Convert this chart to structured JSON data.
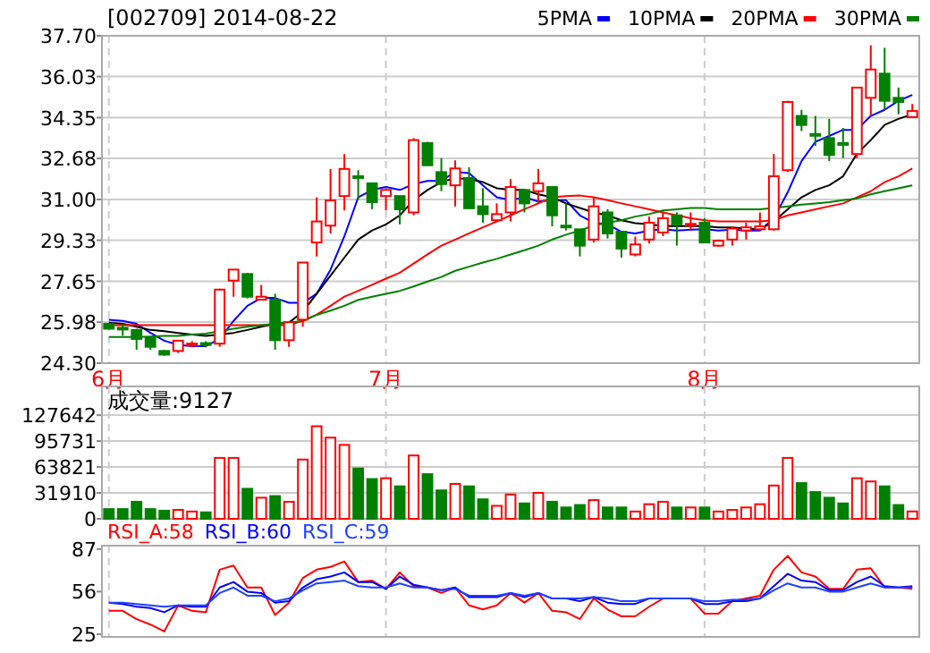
{
  "chart_data": [
    {
      "type": "candlestick",
      "title": "[002709] 2014-08-22",
      "categories": [
        "6月",
        null,
        null,
        null,
        null,
        null,
        null,
        null,
        null,
        null,
        null,
        null,
        null,
        null,
        null,
        null,
        null,
        null,
        null,
        null,
        "7月",
        null,
        null,
        null,
        null,
        null,
        null,
        null,
        null,
        null,
        null,
        null,
        null,
        null,
        null,
        null,
        null,
        null,
        null,
        null,
        null,
        null,
        null,
        "8月",
        null,
        null,
        null,
        null,
        null,
        null,
        null,
        null,
        null,
        null,
        null,
        null,
        null,
        null,
        null
      ],
      "ohlc": [
        [
          25.91,
          25.95,
          25.68,
          25.71
        ],
        [
          25.75,
          25.91,
          25.42,
          25.7
        ],
        [
          25.66,
          25.71,
          24.85,
          25.29
        ],
        [
          25.34,
          25.4,
          24.85,
          24.97
        ],
        [
          24.8,
          24.85,
          24.6,
          24.65
        ],
        [
          24.8,
          25.25,
          24.72,
          25.22
        ],
        [
          25.05,
          25.2,
          24.95,
          25.1
        ],
        [
          25.12,
          25.2,
          24.95,
          25.05
        ],
        [
          25.1,
          27.35,
          24.97,
          27.31
        ],
        [
          27.68,
          28.13,
          27.02,
          28.13
        ],
        [
          27.95,
          28.0,
          26.95,
          27.02
        ],
        [
          26.9,
          27.5,
          26.9,
          27.02
        ],
        [
          26.9,
          27.14,
          24.85,
          25.24
        ],
        [
          25.24,
          26.0,
          24.97,
          25.98
        ],
        [
          26.08,
          28.42,
          25.79,
          28.42
        ],
        [
          29.24,
          31.09,
          28.67,
          30.1
        ],
        [
          29.93,
          32.25,
          29.61,
          30.96
        ],
        [
          31.14,
          32.86,
          30.55,
          32.25
        ],
        [
          31.95,
          32.2,
          31.0,
          31.9
        ],
        [
          31.66,
          31.66,
          30.6,
          30.89
        ],
        [
          31.14,
          31.45,
          30.55,
          31.39
        ],
        [
          31.14,
          31.14,
          29.98,
          30.6
        ],
        [
          30.47,
          33.51,
          30.35,
          33.43
        ],
        [
          33.31,
          33.36,
          32.4,
          32.4
        ],
        [
          32.12,
          32.69,
          31.34,
          31.63
        ],
        [
          31.58,
          32.6,
          30.72,
          32.27
        ],
        [
          31.88,
          32.32,
          30.64,
          30.64
        ],
        [
          30.72,
          31.46,
          30.05,
          30.4
        ],
        [
          30.15,
          30.84,
          30.1,
          30.4
        ],
        [
          30.47,
          31.83,
          30.1,
          31.51
        ],
        [
          31.39,
          31.39,
          30.47,
          30.84
        ],
        [
          31.34,
          32.25,
          30.84,
          31.66
        ],
        [
          31.51,
          31.51,
          29.9,
          30.35
        ],
        [
          29.93,
          30.84,
          29.73,
          29.9
        ],
        [
          29.78,
          29.78,
          28.67,
          29.11
        ],
        [
          29.36,
          31.09,
          29.24,
          30.72
        ],
        [
          30.47,
          30.6,
          29.4,
          29.61
        ],
        [
          29.68,
          29.68,
          28.62,
          28.99
        ],
        [
          28.75,
          29.48,
          28.67,
          29.16
        ],
        [
          29.36,
          30.3,
          29.2,
          30.05
        ],
        [
          29.65,
          30.47,
          29.5,
          30.23
        ],
        [
          30.35,
          30.47,
          29.11,
          29.98
        ],
        [
          29.96,
          30.47,
          29.73,
          30.0
        ],
        [
          30.05,
          30.23,
          29.24,
          29.24
        ],
        [
          29.11,
          29.36,
          29.06,
          29.31
        ],
        [
          29.36,
          29.9,
          29.11,
          29.81
        ],
        [
          29.73,
          30.05,
          29.36,
          29.86
        ],
        [
          29.78,
          30.47,
          29.73,
          29.9
        ],
        [
          29.78,
          32.86,
          29.73,
          31.95
        ],
        [
          32.2,
          35.04,
          32.12,
          34.99
        ],
        [
          34.42,
          34.67,
          33.8,
          34.05
        ],
        [
          33.68,
          34.42,
          33.19,
          33.65
        ],
        [
          33.51,
          34.3,
          32.57,
          32.82
        ],
        [
          33.31,
          33.93,
          32.69,
          33.28
        ],
        [
          32.86,
          35.58,
          32.69,
          35.58
        ],
        [
          35.16,
          37.31,
          34.42,
          36.32
        ],
        [
          36.15,
          37.21,
          34.67,
          35.04
        ],
        [
          35.16,
          35.58,
          34.49,
          34.99
        ],
        [
          34.37,
          34.91,
          34.37,
          34.62
        ]
      ],
      "colors": [
        "#008000",
        "#008000",
        "#008000",
        "#008000",
        "#008000",
        "#ff0000",
        "#ff0000",
        "#008000",
        "#ff0000",
        "#ff0000",
        "#008000",
        "#ff0000",
        "#008000",
        "#ff0000",
        "#ff0000",
        "#ff0000",
        "#ff0000",
        "#ff0000",
        "#008000",
        "#008000",
        "#ff0000",
        "#008000",
        "#ff0000",
        "#008000",
        "#008000",
        "#ff0000",
        "#008000",
        "#008000",
        "#ff0000",
        "#ff0000",
        "#008000",
        "#ff0000",
        "#008000",
        "#008000",
        "#008000",
        "#ff0000",
        "#008000",
        "#008000",
        "#ff0000",
        "#ff0000",
        "#ff0000",
        "#008000",
        "#ff0000",
        "#008000",
        "#ff0000",
        "#ff0000",
        "#ff0000",
        "#ff0000",
        "#ff0000",
        "#ff0000",
        "#008000",
        "#008000",
        "#008000",
        "#008000",
        "#ff0000",
        "#ff0000",
        "#008000",
        "#008000",
        "#ff0000"
      ],
      "series": [
        {
          "name": "5PMA",
          "type": "line",
          "color": "#0000ff",
          "values": [
            26.08,
            26.03,
            25.91,
            25.54,
            25.22,
            25.05,
            25.0,
            25.0,
            25.29,
            26.03,
            26.65,
            26.97,
            26.97,
            26.77,
            26.77,
            27.14,
            28.13,
            29.49,
            31.09,
            31.39,
            31.51,
            31.39,
            31.63,
            31.76,
            31.76,
            32.13,
            32.08,
            31.58,
            31.09,
            30.97,
            31.09,
            30.92,
            30.97,
            30.97,
            30.35,
            30.05,
            29.98,
            29.68,
            29.61,
            29.73,
            29.78,
            29.73,
            29.76,
            29.78,
            29.73,
            29.76,
            29.73,
            29.73,
            30.23,
            31.29,
            32.57,
            33.36,
            33.6,
            33.85,
            33.85,
            34.42,
            34.67,
            35.04,
            35.28
          ]
        },
        {
          "name": "10PMA",
          "type": "line",
          "color": "#000000",
          "values": [
            25.96,
            25.91,
            25.79,
            25.66,
            25.61,
            25.54,
            25.47,
            25.42,
            25.47,
            25.54,
            25.66,
            25.79,
            25.91,
            25.96,
            26.4,
            27.14,
            27.88,
            28.62,
            29.36,
            29.73,
            29.98,
            30.35,
            30.97,
            31.39,
            31.71,
            31.88,
            31.83,
            31.71,
            31.46,
            31.39,
            31.39,
            31.21,
            31.09,
            30.84,
            30.65,
            30.47,
            30.35,
            30.15,
            30.03,
            29.98,
            29.91,
            29.91,
            29.91,
            29.91,
            29.86,
            29.86,
            29.81,
            29.78,
            30.1,
            30.6,
            31.09,
            31.39,
            31.58,
            31.95,
            32.87,
            33.43,
            34.05,
            34.3,
            34.49
          ]
        },
        {
          "name": "20PMA",
          "type": "line",
          "color": "#ff0000",
          "values": [
            25.86,
            25.86,
            25.86,
            25.86,
            25.86,
            25.86,
            25.86,
            25.86,
            25.86,
            25.86,
            25.86,
            25.86,
            25.86,
            25.86,
            26.03,
            26.28,
            26.65,
            27.02,
            27.26,
            27.51,
            27.76,
            28.0,
            28.38,
            28.75,
            29.11,
            29.36,
            29.61,
            29.86,
            30.1,
            30.35,
            30.6,
            30.84,
            31.09,
            31.14,
            31.16,
            31.09,
            30.97,
            30.84,
            30.72,
            30.6,
            30.47,
            30.35,
            30.23,
            30.15,
            30.1,
            30.1,
            30.1,
            30.1,
            30.15,
            30.35,
            30.47,
            30.6,
            30.72,
            30.84,
            31.09,
            31.34,
            31.71,
            31.95,
            32.27
          ]
        },
        {
          "name": "30PMA",
          "type": "line",
          "color": "#008000",
          "values": [
            25.37,
            25.37,
            25.37,
            25.39,
            25.42,
            25.42,
            25.47,
            25.51,
            25.61,
            25.71,
            25.79,
            25.86,
            25.91,
            25.96,
            26.03,
            26.28,
            26.45,
            26.65,
            26.89,
            27.02,
            27.14,
            27.26,
            27.44,
            27.64,
            27.83,
            28.08,
            28.25,
            28.42,
            28.57,
            28.75,
            28.92,
            29.11,
            29.36,
            29.56,
            29.73,
            29.93,
            30.05,
            30.15,
            30.3,
            30.4,
            30.55,
            30.6,
            30.65,
            30.65,
            30.6,
            30.6,
            30.6,
            30.6,
            30.65,
            30.72,
            30.79,
            30.84,
            30.89,
            30.97,
            31.04,
            31.21,
            31.34,
            31.46,
            31.58
          ]
        }
      ],
      "ylim": [
        24.3,
        37.7
      ],
      "yticks": [
        {
          "value": 24.3,
          "label": "24.30"
        },
        25.98,
        27.65,
        29.33,
        {
          "value": 31.0,
          "label": "31.00"
        },
        32.68,
        34.35,
        36.03,
        {
          "value": 37.7,
          "label": "37.70"
        }
      ],
      "grid": true,
      "legend": "top right"
    },
    {
      "type": "bar",
      "title": "成交量:9127",
      "categories": [
        null,
        null,
        null,
        null,
        null,
        null,
        null,
        null,
        null,
        null,
        null,
        null,
        null,
        null,
        null,
        null,
        null,
        null,
        null,
        null,
        null,
        null,
        null,
        null,
        null,
        null,
        null,
        null,
        null,
        null,
        null,
        null,
        null,
        null,
        null,
        null,
        null,
        null,
        null,
        null,
        null,
        null,
        null,
        null,
        null,
        null,
        null,
        null,
        null,
        null,
        null,
        null,
        null,
        null,
        null,
        null,
        null,
        null,
        null
      ],
      "values": [
        12000,
        12000,
        21000,
        12000,
        10000,
        11000,
        9000,
        8000,
        75000,
        75000,
        37000,
        26000,
        28000,
        21000,
        73000,
        114000,
        100000,
        91000,
        62000,
        49000,
        50000,
        40000,
        78000,
        55000,
        35000,
        43000,
        40000,
        24000,
        16000,
        30000,
        19000,
        32000,
        21000,
        14000,
        17000,
        23000,
        14000,
        14000,
        9000,
        18000,
        21000,
        14000,
        14000,
        14000,
        9000,
        11000,
        14000,
        18000,
        41000,
        75000,
        44000,
        33000,
        26000,
        19000,
        50000,
        46000,
        40000,
        17000,
        9127
      ],
      "colors": [
        "#008000",
        "#008000",
        "#008000",
        "#008000",
        "#008000",
        "#ff0000",
        "#ff0000",
        "#008000",
        "#ff0000",
        "#ff0000",
        "#008000",
        "#ff0000",
        "#008000",
        "#ff0000",
        "#ff0000",
        "#ff0000",
        "#ff0000",
        "#ff0000",
        "#008000",
        "#008000",
        "#ff0000",
        "#008000",
        "#ff0000",
        "#008000",
        "#008000",
        "#ff0000",
        "#008000",
        "#008000",
        "#ff0000",
        "#ff0000",
        "#008000",
        "#ff0000",
        "#008000",
        "#008000",
        "#008000",
        "#ff0000",
        "#008000",
        "#008000",
        "#ff0000",
        "#ff0000",
        "#ff0000",
        "#008000",
        "#ff0000",
        "#008000",
        "#ff0000",
        "#ff0000",
        "#ff0000",
        "#ff0000",
        "#ff0000",
        "#ff0000",
        "#008000",
        "#008000",
        "#008000",
        "#008000",
        "#ff0000",
        "#ff0000",
        "#008000",
        "#008000",
        "#ff0000"
      ],
      "ylim": [
        0,
        163000
      ],
      "yticks": [
        0,
        31910,
        63821,
        95731,
        127642
      ],
      "grid": true,
      "tick_labels": "y"
    },
    {
      "type": "line",
      "categories": [
        null,
        null,
        null,
        null,
        null,
        null,
        null,
        null,
        null,
        null,
        null,
        null,
        null,
        null,
        null,
        null,
        null,
        null,
        null,
        null,
        null,
        null,
        null,
        null,
        null,
        null,
        null,
        null,
        null,
        null,
        null,
        null,
        null,
        null,
        null,
        null,
        null,
        null,
        null,
        null,
        null,
        null,
        null,
        null,
        null,
        null,
        null,
        null,
        null,
        null,
        null,
        null,
        null,
        null,
        null,
        null,
        null,
        null,
        null
      ],
      "series": [
        {
          "name": "RSI_A:58",
          "color": "#ff0000",
          "values": [
            42,
            42,
            36,
            32,
            27,
            46,
            42,
            41,
            72,
            75,
            59,
            59,
            39,
            48,
            66,
            72,
            74,
            78,
            63,
            64,
            58,
            70,
            60,
            59,
            55,
            59,
            46,
            43,
            46,
            55,
            48,
            55,
            42,
            41,
            36,
            51,
            43,
            38,
            38,
            45,
            51,
            51,
            51,
            40,
            40,
            49,
            51,
            53,
            72,
            82,
            70,
            67,
            58,
            58,
            72,
            73,
            59,
            59,
            58
          ]
        },
        {
          "name": "RSI_B:60",
          "color": "#0000ff",
          "values": [
            48,
            47,
            45,
            44,
            41,
            46,
            45,
            45,
            59,
            63,
            56,
            55,
            48,
            49,
            59,
            65,
            67,
            70,
            63,
            63,
            58,
            67,
            61,
            59,
            57,
            59,
            52,
            52,
            52,
            55,
            52,
            55,
            51,
            51,
            49,
            52,
            48,
            47,
            47,
            51,
            51,
            51,
            51,
            47,
            47,
            49,
            49,
            51,
            60,
            69,
            64,
            63,
            57,
            57,
            63,
            67,
            60,
            59,
            60
          ]
        },
        {
          "name": "RSI_C:59",
          "color": "#2040ff",
          "values": [
            48,
            48,
            47,
            46,
            45,
            46,
            46,
            46,
            55,
            59,
            53,
            53,
            49,
            51,
            57,
            62,
            63,
            64,
            60,
            59,
            59,
            62,
            59,
            59,
            57,
            58,
            53,
            53,
            53,
            55,
            53,
            55,
            51,
            51,
            51,
            52,
            51,
            49,
            49,
            51,
            51,
            51,
            51,
            49,
            49,
            50,
            50,
            51,
            57,
            62,
            59,
            59,
            56,
            56,
            59,
            62,
            59,
            59,
            59
          ]
        }
      ],
      "ylim": [
        23,
        89.5
      ],
      "yticks": [
        25,
        56,
        87
      ],
      "grid": "x",
      "tick_labels": "y",
      "legend": "top left"
    }
  ]
}
